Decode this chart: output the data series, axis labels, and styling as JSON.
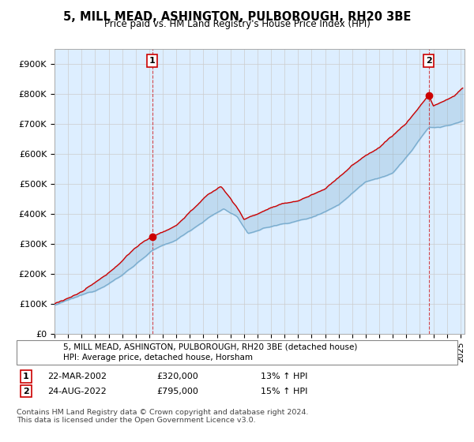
{
  "title": "5, MILL MEAD, ASHINGTON, PULBOROUGH, RH20 3BE",
  "subtitle": "Price paid vs. HM Land Registry's House Price Index (HPI)",
  "ylabel_ticks": [
    "£0",
    "£100K",
    "£200K",
    "£300K",
    "£400K",
    "£500K",
    "£600K",
    "£700K",
    "£800K",
    "£900K"
  ],
  "ytick_values": [
    0,
    100000,
    200000,
    300000,
    400000,
    500000,
    600000,
    700000,
    800000,
    900000
  ],
  "ylim": [
    0,
    950000
  ],
  "sale1_x": 2002.22,
  "sale1_price": 320000,
  "sale1_date": "22-MAR-2002",
  "sale1_hpi_text": "13% ↑ HPI",
  "sale2_x": 2022.65,
  "sale2_price": 795000,
  "sale2_date": "24-AUG-2022",
  "sale2_hpi_text": "15% ↑ HPI",
  "legend_line1": "5, MILL MEAD, ASHINGTON, PULBOROUGH, RH20 3BE (detached house)",
  "legend_line2": "HPI: Average price, detached house, Horsham",
  "footer": "Contains HM Land Registry data © Crown copyright and database right 2024.\nThis data is licensed under the Open Government Licence v3.0.",
  "line1_color": "#cc0000",
  "line2_color": "#7aadcf",
  "fill_color": "#ddeeff",
  "vline_color": "#cc0000",
  "box_color": "#cc0000",
  "background_color": "#ffffff",
  "grid_color": "#cccccc",
  "xlim_left": 1995.0,
  "xlim_right": 2025.3
}
